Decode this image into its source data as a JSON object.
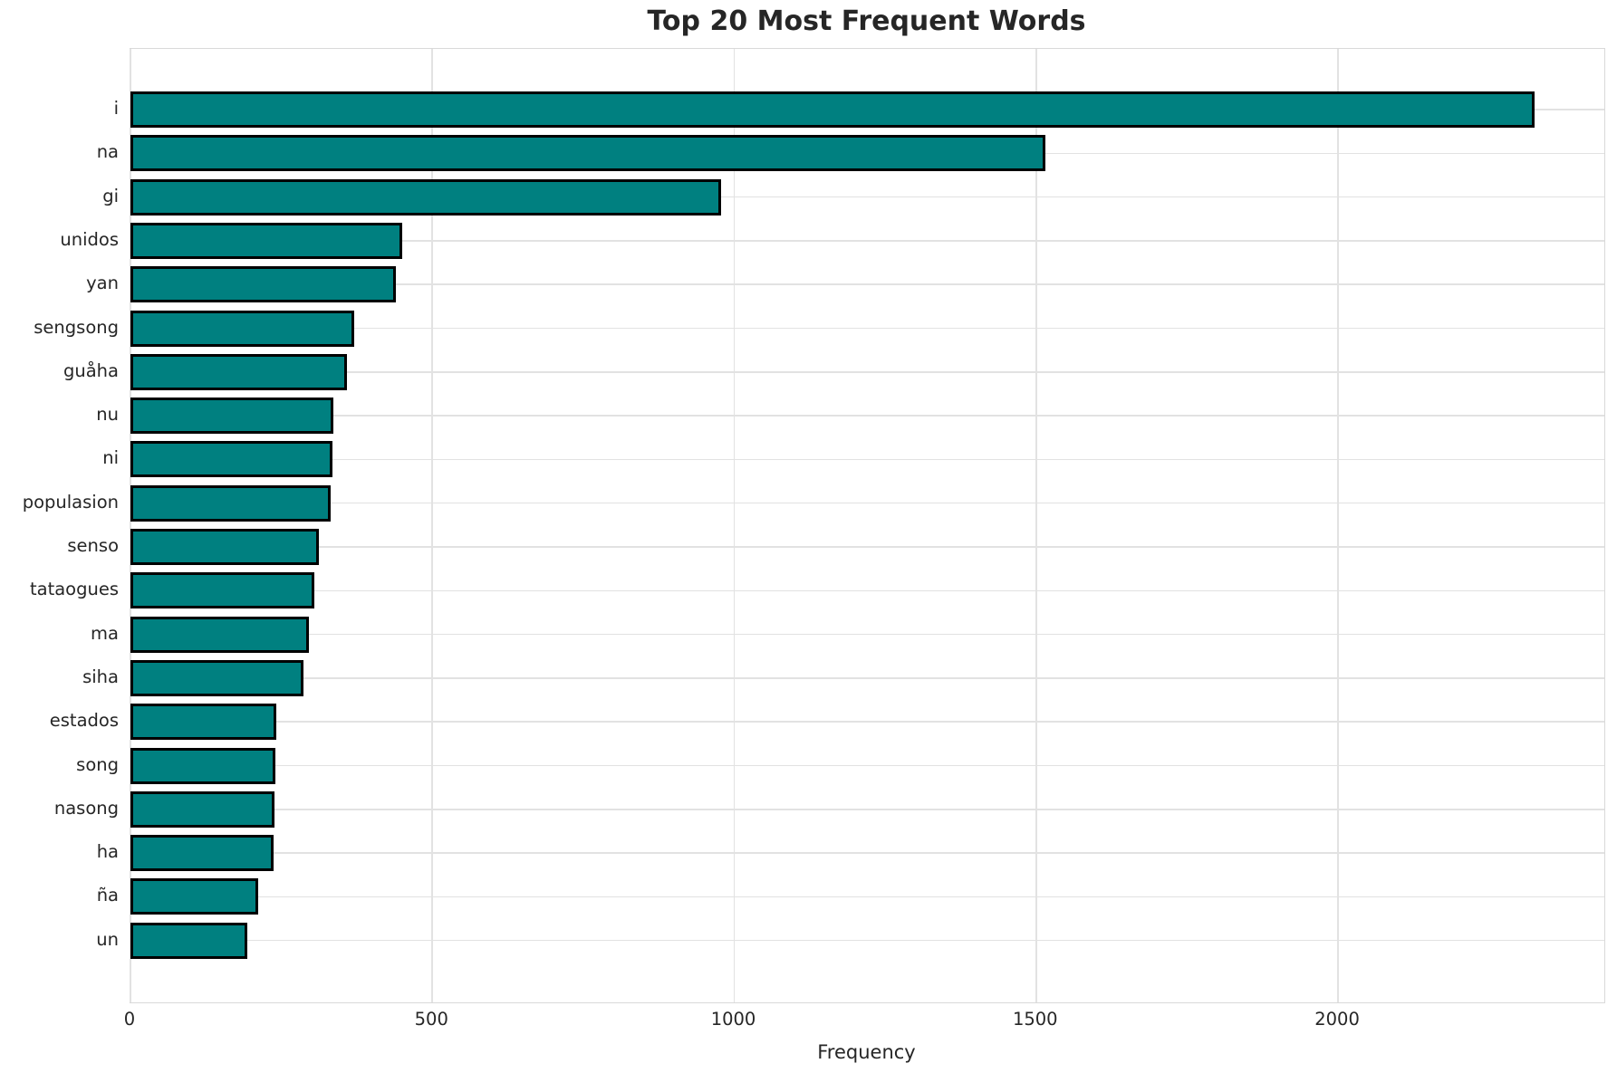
{
  "figure": {
    "title": "Top 20 Most Frequent Words",
    "xlabel": "Frequency"
  },
  "chart_data": {
    "type": "bar",
    "orientation": "horizontal",
    "title": "Top 20 Most Frequent Words",
    "xlabel": "Frequency",
    "ylabel": "",
    "categories": [
      "i",
      "na",
      "gi",
      "unidos",
      "yan",
      "sengsong",
      "guåha",
      "nu",
      "ni",
      "populasion",
      "senso",
      "tataogues",
      "ma",
      "siha",
      "estados",
      "song",
      "nasong",
      "ha",
      "ña",
      "un"
    ],
    "values": [
      2325,
      1515,
      978,
      450,
      439,
      371,
      358,
      336,
      334,
      331,
      312,
      305,
      296,
      287,
      241,
      240,
      238,
      237,
      212,
      193
    ],
    "xlim": [
      0,
      2441
    ],
    "xticks": [
      0,
      500,
      1000,
      1500,
      2000
    ],
    "grid": true,
    "legend": "none",
    "bar_color": "#008080",
    "bar_edge_color": "#000000",
    "grid_color": "#e2e2e2",
    "spine_color": "#d9d9d9",
    "text_color": "#262626",
    "background_color": "#ffffff"
  }
}
